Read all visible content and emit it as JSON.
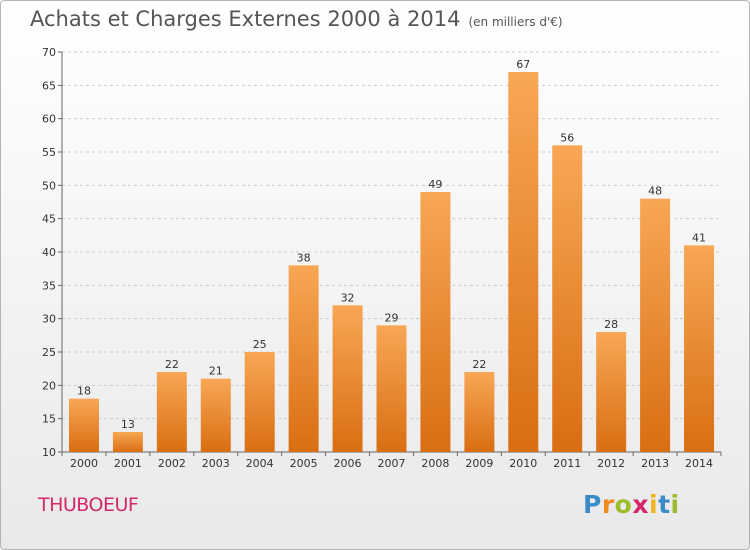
{
  "header": {
    "title": "Achats et Charges Externes 2000 à 2014",
    "subtitle": "(en milliers d'€)"
  },
  "footer": {
    "commune": "THUBOEUF",
    "logo_text": "Proxiti"
  },
  "colors": {
    "bar_top": "#f8a755",
    "bar_bottom": "#d96e12",
    "grid": "#cccccc",
    "commune_text": "#d5286a"
  },
  "chart_data": {
    "type": "bar",
    "title": "Achats et Charges Externes 2000 à 2014",
    "subtitle": "(en milliers d'€)",
    "xlabel": "",
    "ylabel": "",
    "categories": [
      "2000",
      "2001",
      "2002",
      "2003",
      "2004",
      "2005",
      "2006",
      "2007",
      "2008",
      "2009",
      "2010",
      "2011",
      "2012",
      "2013",
      "2014"
    ],
    "values": [
      18,
      13,
      22,
      21,
      25,
      38,
      32,
      29,
      49,
      22,
      67,
      56,
      28,
      48,
      41
    ],
    "ylim": [
      10,
      70
    ],
    "yticks": [
      10,
      15,
      20,
      25,
      30,
      35,
      40,
      45,
      50,
      55,
      60,
      65,
      70
    ],
    "grid": "horizontal dashed",
    "legend": "none"
  }
}
